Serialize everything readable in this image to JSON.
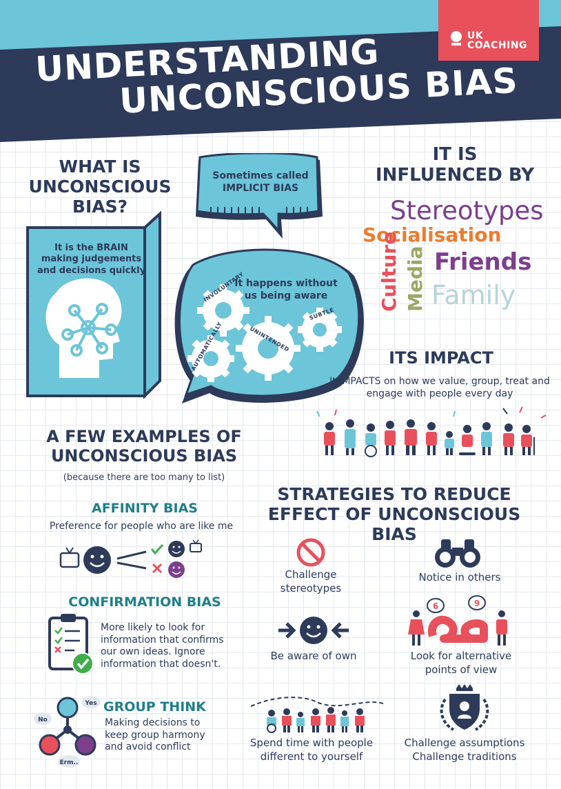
{
  "header": {
    "title_line1": "UNDERSTANDING",
    "title_line2": "UNCONSCIOUS BIAS",
    "logo_line1": "UK",
    "logo_line2": "COACHING"
  },
  "what_is": {
    "heading": "WHAT IS UNCONSCIOUS BIAS?",
    "brain_text": "It is the BRAIN making judgements and decisions quickly",
    "bubble1_text": "Sometimes called IMPLICIT BIAS",
    "bubble2_text": "It happens without us being aware",
    "gears": [
      "INVOLUNTARY",
      "UNINTENDED",
      "SUBTLE",
      "AUTOMATICALLY"
    ]
  },
  "influenced": {
    "heading": "IT IS INFLUENCED BY",
    "words": [
      "Stereotypes",
      "Socialisation",
      "Culture",
      "Media",
      "Friends",
      "Family"
    ]
  },
  "impact": {
    "heading": "ITS IMPACT",
    "text": "It IMPACTS on how we value, group, treat and engage with people every day"
  },
  "examples": {
    "heading": "A FEW EXAMPLES OF UNCONSCIOUS BIAS",
    "subheading": "(because there are too many to list)",
    "affinity_title": "AFFINITY BIAS",
    "affinity_text": "Preference for people who are like me",
    "confirmation_title": "CONFIRMATION BIAS",
    "confirmation_text": "More likely to look for information that confirms our own ideas. Ignore information that doesn't.",
    "groupthink_title": "GROUP THINK",
    "groupthink_text": "Making decisions to keep group harmony and avoid conflict",
    "groupthink_bubbles": [
      "Yes",
      "No",
      "Erm.."
    ]
  },
  "strategies": {
    "heading": "STRATEGIES TO REDUCE EFFECT OF UNCONSCIOUS BIAS",
    "items": [
      {
        "label": "Challenge stereotypes",
        "icon": "no-entry-icon"
      },
      {
        "label": "Notice in others",
        "icon": "binoculars-icon"
      },
      {
        "label": "Be aware of own",
        "icon": "face-arrows-icon"
      },
      {
        "label": "Look for alternative points of view",
        "icon": "six-nine-icon"
      },
      {
        "label": "Spend time with people different to yourself",
        "icon": "people-group-icon"
      },
      {
        "label": "Challenge assumptions Challenge traditions",
        "icon": "crest-icon"
      }
    ],
    "six_nine": [
      "6",
      "9"
    ]
  },
  "colors": {
    "navy": "#2d3a5a",
    "sky": "#6cc5d8",
    "red": "#e8505b",
    "teal": "#1f7f8a",
    "orange": "#ee7b2e",
    "purple": "#7b3f8c",
    "olive": "#9ca864"
  }
}
